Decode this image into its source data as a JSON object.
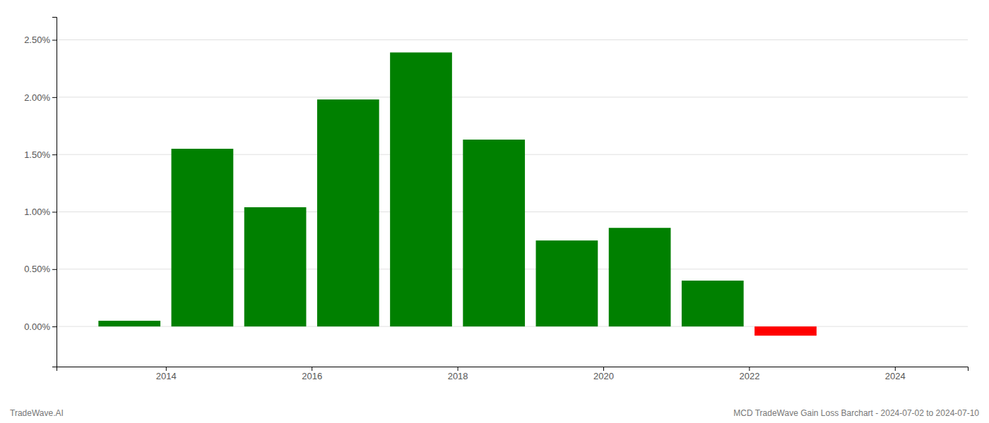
{
  "chart_data": {
    "type": "bar",
    "x": [
      2013.5,
      2014.5,
      2015.5,
      2016.5,
      2017.5,
      2018.5,
      2019.5,
      2020.5,
      2021.5,
      2022.5
    ],
    "values": [
      0.0005,
      0.0155,
      0.0104,
      0.0198,
      0.0239,
      0.0163,
      0.0075,
      0.0086,
      0.004,
      -0.0008
    ],
    "colors": [
      "#008000",
      "#008000",
      "#008000",
      "#008000",
      "#008000",
      "#008000",
      "#008000",
      "#008000",
      "#008000",
      "#ff0000"
    ],
    "xlim": [
      2012.5,
      2025.0
    ],
    "xticks": [
      2014,
      2016,
      2018,
      2020,
      2022,
      2024
    ],
    "ylim": [
      -0.0035,
      0.027
    ],
    "yticks": [
      {
        "value": 0.0,
        "label": "0.00%"
      },
      {
        "value": 0.005,
        "label": "0.50%"
      },
      {
        "value": 0.01,
        "label": "1.00%"
      },
      {
        "value": 0.015,
        "label": "1.50%"
      },
      {
        "value": 0.02,
        "label": "2.00%"
      },
      {
        "value": 0.025,
        "label": "2.50%"
      }
    ],
    "grid": true,
    "annotations": [
      "TradeWave.AI",
      "MCD TradeWave Gain Loss Barchart - 2024-07-02 to 2024-07-10"
    ]
  }
}
